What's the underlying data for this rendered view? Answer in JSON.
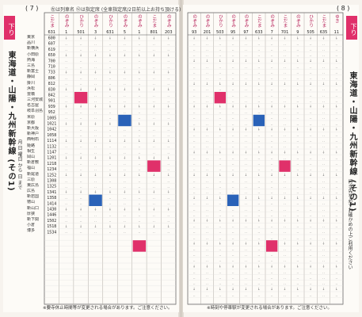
{
  "left_page": {
    "page_number": "( 7 )",
    "header_note": "㊧は列車名 ⑫は指定席 (全車指定席/2日前以上お持ち頂ける)",
    "tab_label": "下り",
    "section_title": "東海道・山陽・九州新幹線 (その1)",
    "side_note": "月 日 曜日 から 日 まで",
    "footnote": "※要寺休止時間等が変更される場合があります。ご注意ください。",
    "train_names": [
      "こだま",
      "のぞみ",
      "ひかり",
      "のぞみ",
      "ひかり",
      "のぞみ",
      "のぞみ",
      "こだま",
      "のぞみ"
    ],
    "train_numbers": [
      "631",
      "1",
      "501",
      "3",
      "631",
      "5",
      "1",
      "801",
      "203"
    ],
    "stations": [
      "東京",
      "品川",
      "新横浜",
      "小田原",
      "熱海",
      "三島",
      "新富士",
      "静岡",
      "掛川",
      "浜松",
      "豊橋",
      "三河安城",
      "名古屋",
      "岐阜羽島",
      "米原",
      "京都",
      "新大阪",
      "新神戸",
      "西明石",
      "姫路",
      "相生",
      "岡山",
      "新倉敷",
      "福山",
      "新尾道",
      "三原",
      "東広島",
      "広島",
      "新岩国",
      "徳山",
      "新山口",
      "厚狭",
      "新下関",
      "小倉",
      "博多"
    ],
    "times": [
      "600",
      "607",
      "619",
      "650",
      "700",
      "710",
      "733",
      "806",
      "812",
      "830",
      "842",
      "901",
      "939",
      "952",
      "1005",
      "1021",
      "1042",
      "1058",
      "1114",
      "1132",
      "1147",
      "1201",
      "1218",
      "1234",
      "1252",
      "1308",
      "1325",
      "1341",
      "1358",
      "1414",
      "1430",
      "1446",
      "1502",
      "1518",
      "1534"
    ]
  },
  "right_page": {
    "page_number": "( 8 )",
    "tab_label": "下り",
    "section_title": "東海道・山陽・九州新幹線 (その1)",
    "side_note": "行き先を必ずお確かめの上ご利用ください",
    "footnote": "※時刻や停車駅が変更される場合があります。ご注意ください。",
    "train_names": [
      "のぞみ",
      "のぞみ",
      "ひかり",
      "のぞみ",
      "のぞみ",
      "こだま",
      "のぞみ",
      "こだま",
      "のぞみ",
      "ひかり",
      "こだま",
      "ゆき"
    ],
    "train_numbers": [
      "93",
      "201",
      "503",
      "95",
      "97",
      "633",
      "7",
      "701",
      "9",
      "505",
      "635",
      "11"
    ]
  },
  "colors": {
    "accent_pink": "#e0306a",
    "accent_blue": "#2a62b8",
    "grid_line": "#9a958e"
  }
}
